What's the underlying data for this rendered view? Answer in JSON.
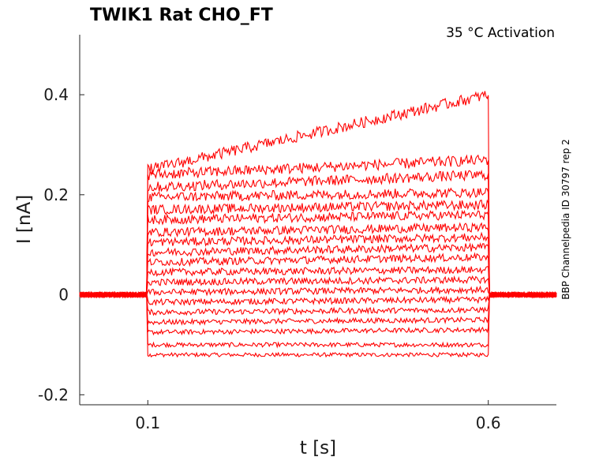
{
  "chart_data": {
    "type": "line",
    "title": "TWIK1  Rat  CHO_FT",
    "subtitle": "35 °C  Activation",
    "side_label": "BBP Channelpedia ID 30797 rep 2",
    "xlabel": "t [s]",
    "ylabel": "I [nA]",
    "xlim": [
      0.0,
      0.7
    ],
    "ylim": [
      -0.22,
      0.52
    ],
    "xticks": [
      {
        "value": 0.1,
        "label": "0.1"
      },
      {
        "value": 0.6,
        "label": "0.6"
      }
    ],
    "yticks": [
      {
        "value": -0.2,
        "label": "-0.2"
      },
      {
        "value": 0.0,
        "label": "0"
      },
      {
        "value": 0.2,
        "label": "0.2"
      },
      {
        "value": 0.4,
        "label": "0.4"
      }
    ],
    "grid": false,
    "legend": "none",
    "line_color": "#ff0000",
    "pulse": {
      "start": 0.1,
      "end": 0.6
    },
    "series_levels": [
      {
        "start": -0.12,
        "end": -0.12
      },
      {
        "start": -0.1,
        "end": -0.1
      },
      {
        "start": -0.075,
        "end": -0.07
      },
      {
        "start": -0.055,
        "end": -0.05
      },
      {
        "start": -0.035,
        "end": -0.03
      },
      {
        "start": -0.015,
        "end": -0.01
      },
      {
        "start": 0.005,
        "end": 0.01
      },
      {
        "start": 0.025,
        "end": 0.03
      },
      {
        "start": 0.045,
        "end": 0.05
      },
      {
        "start": 0.065,
        "end": 0.075
      },
      {
        "start": 0.085,
        "end": 0.095
      },
      {
        "start": 0.105,
        "end": 0.115
      },
      {
        "start": 0.125,
        "end": 0.135
      },
      {
        "start": 0.15,
        "end": 0.16
      },
      {
        "start": 0.17,
        "end": 0.18
      },
      {
        "start": 0.195,
        "end": 0.205
      },
      {
        "start": 0.215,
        "end": 0.24
      },
      {
        "start": 0.24,
        "end": 0.27
      },
      {
        "start": 0.25,
        "end": 0.4
      }
    ]
  }
}
